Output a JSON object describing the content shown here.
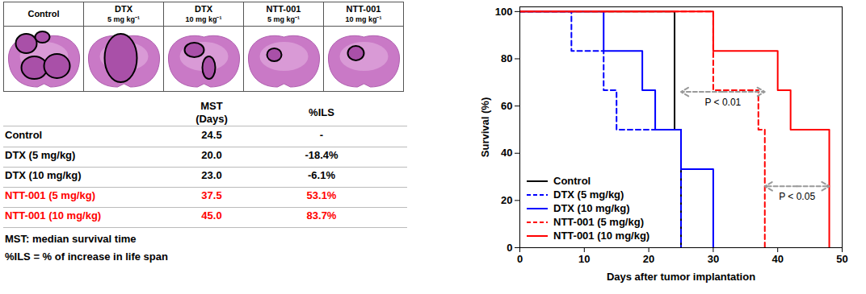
{
  "chart_data": {
    "type": "line",
    "x_label": "Days after tumor implantation",
    "y_label": "Survival (%)",
    "xlim": [
      0,
      50
    ],
    "xticks": [
      0,
      10,
      20,
      30,
      40,
      50
    ],
    "ylim": [
      0,
      102
    ],
    "yticks": [
      0,
      20,
      40,
      60,
      80,
      100
    ],
    "legend": "lower left",
    "series": [
      {
        "name": "Control",
        "color": "#000000",
        "line_style": "solid",
        "x": [
          0,
          24,
          25
        ],
        "values": [
          100,
          50,
          0
        ]
      },
      {
        "name": "DTX (5 mg/kg)",
        "color": "#0000ff",
        "line_style": "dashed",
        "x": [
          0,
          8,
          13,
          15,
          25
        ],
        "values": [
          100,
          83.3,
          66.7,
          50,
          0
        ]
      },
      {
        "name": "DTX (10 mg/kg)",
        "color": "#0000ff",
        "line_style": "solid",
        "x": [
          0,
          13,
          19,
          21,
          25,
          30
        ],
        "values": [
          100,
          83.3,
          66.7,
          50,
          33.3,
          0
        ]
      },
      {
        "name": "NTT-001 (5 mg/kg)",
        "color": "#ff0000",
        "line_style": "dashed",
        "x": [
          0,
          30,
          37,
          38
        ],
        "values": [
          100,
          66.7,
          50,
          0
        ]
      },
      {
        "name": "NTT-001 (10 mg/kg)",
        "color": "#ff0000",
        "line_style": "solid",
        "x": [
          0,
          30,
          40,
          42,
          48
        ],
        "values": [
          100,
          83.3,
          66.7,
          50,
          0
        ]
      }
    ],
    "annotations": [
      {
        "text": "P < 0.01",
        "x": [
          25,
          38
        ],
        "y": 66
      },
      {
        "text": "P < 0.05",
        "x": [
          38,
          48
        ],
        "y": 26
      }
    ]
  },
  "images": [
    {
      "name": "Control"
    },
    {
      "name": "DTX",
      "dose": "5 mg kg⁻¹"
    },
    {
      "name": "DTX",
      "dose": "10 mg kg⁻¹"
    },
    {
      "name": "NTT-001",
      "dose": "5 mg kg⁻¹"
    },
    {
      "name": "NTT-001",
      "dose": "10 mg kg⁻¹"
    }
  ],
  "table": {
    "header": [
      [
        "MST",
        "(Days)"
      ],
      [
        "%ILS"
      ]
    ],
    "rows": [
      {
        "cells": [
          "Control",
          "24.5",
          "-"
        ],
        "color": "#000000"
      },
      {
        "cells": [
          "DTX (5 mg/kg)",
          "20.0",
          "-18.4%"
        ],
        "color": "#000000"
      },
      {
        "cells": [
          "DTX (10 mg/kg)",
          "23.0",
          "-6.1%"
        ],
        "color": "#000000"
      },
      {
        "cells": [
          "NTT-001 (5 mg/kg)",
          "37.5",
          "53.1%"
        ],
        "color": "#ff0000"
      },
      {
        "cells": [
          "NTT-001 (10 mg/kg)",
          "45.0",
          "83.7%"
        ],
        "color": "#ff0000"
      }
    ],
    "notes": [
      "MST: median survival time",
      "%ILS = % of increase in life span"
    ]
  }
}
